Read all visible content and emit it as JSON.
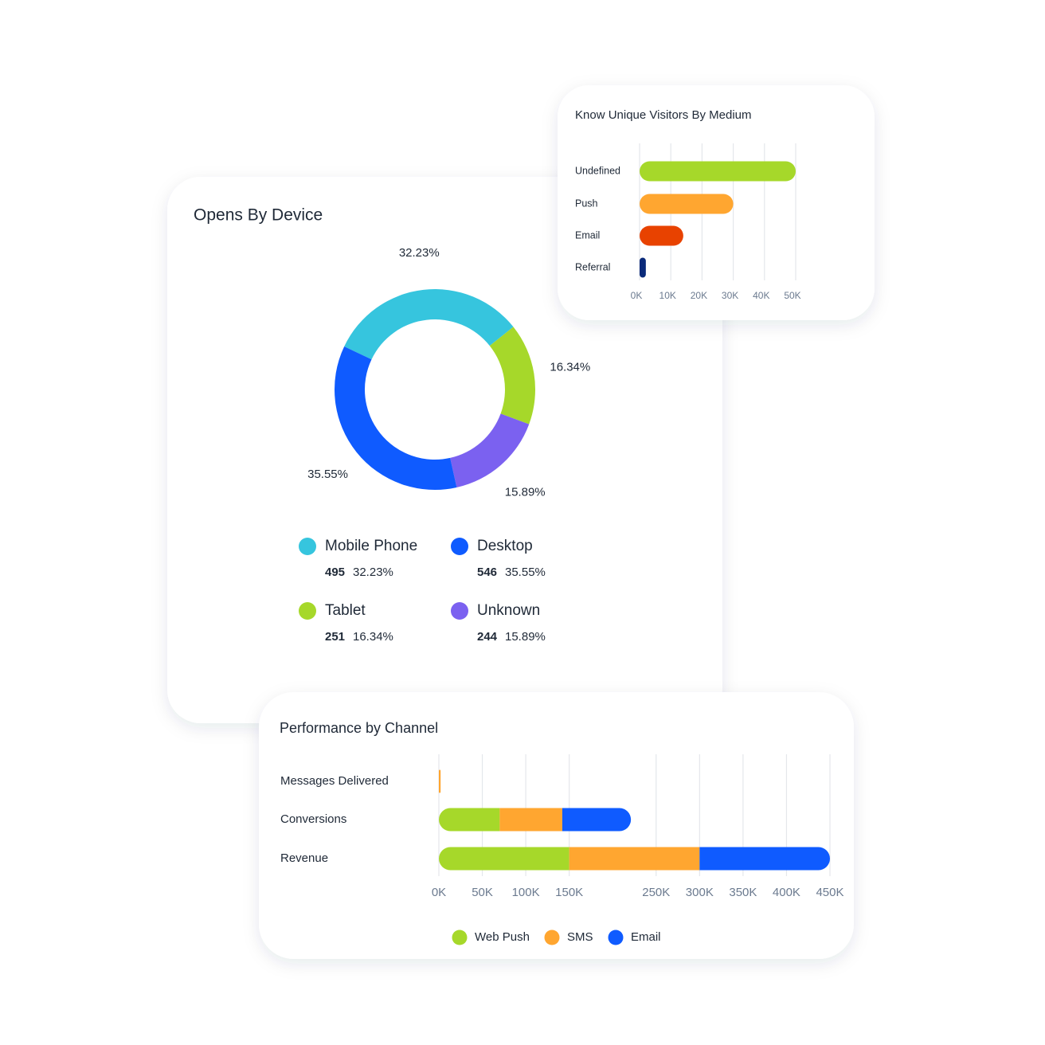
{
  "chart_data": [
    {
      "type": "donut",
      "title": "Opens By Device",
      "categories": [
        "Mobile Phone",
        "Tablet",
        "Unknown",
        "Desktop"
      ],
      "values": [
        32.23,
        16.34,
        15.89,
        35.55
      ],
      "value_labels": [
        "32.23%",
        "16.34%",
        "15.89%",
        "35.55%"
      ],
      "counts": [
        495,
        251,
        244,
        546
      ],
      "colors": [
        "#36c5de",
        "#a6d82a",
        "#7b61f0",
        "#0f5bff"
      ]
    },
    {
      "type": "hbar",
      "title": "Know Unique Visitors By Medium",
      "categories": [
        "Undefined",
        "Push",
        "Email",
        "Referral"
      ],
      "values": [
        50000,
        30000,
        14000,
        2000
      ],
      "colors": [
        "#a6d82a",
        "#ffa630",
        "#e84200",
        "#0a2a7a"
      ],
      "xlim": [
        0,
        50000
      ],
      "xticks": [
        {
          "value": 0,
          "label": "0K"
        },
        {
          "value": 10000,
          "label": "10K"
        },
        {
          "value": 20000,
          "label": "20K"
        },
        {
          "value": 30000,
          "label": "30K"
        },
        {
          "value": 40000,
          "label": "40K"
        },
        {
          "value": 50000,
          "label": "50K"
        }
      ],
      "grid": true
    },
    {
      "type": "stacked_hbar",
      "title": "Performance by Channel",
      "categories": [
        "Messages Delivered",
        "Conversions",
        "Revenue"
      ],
      "series": [
        {
          "name": "Web Push",
          "color": "#a6d82a",
          "values": [
            0,
            70000,
            150000
          ]
        },
        {
          "name": "SMS",
          "color": "#ffa630",
          "values": [
            2000,
            72000,
            150000
          ]
        },
        {
          "name": "Email",
          "color": "#0f5bff",
          "values": [
            0,
            79000,
            150000
          ]
        }
      ],
      "xlim": [
        0,
        450000
      ],
      "xticks": [
        {
          "value": 0,
          "label": "0K"
        },
        {
          "value": 50000,
          "label": "50K"
        },
        {
          "value": 100000,
          "label": "100K"
        },
        {
          "value": 150000,
          "label": "150K"
        },
        {
          "value": 250000,
          "label": "250K"
        },
        {
          "value": 300000,
          "label": "300K"
        },
        {
          "value": 350000,
          "label": "350K"
        },
        {
          "value": 400000,
          "label": "400K"
        },
        {
          "value": 450000,
          "label": "450K"
        }
      ],
      "grid": true,
      "legend": "bottom"
    }
  ]
}
